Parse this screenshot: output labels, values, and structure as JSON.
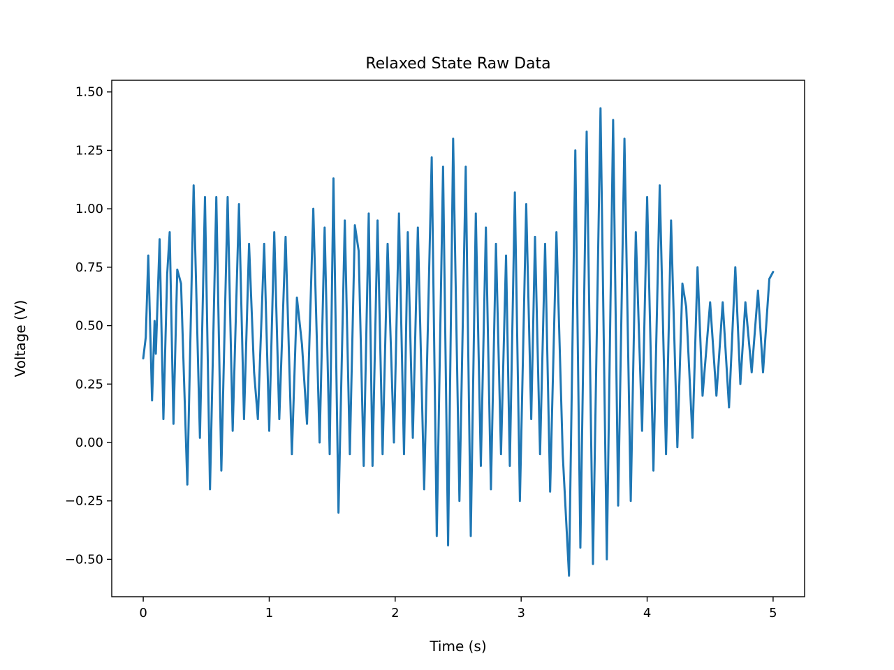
{
  "chart_data": {
    "type": "line",
    "title": "Relaxed State Raw Data",
    "xlabel": "Time (s)",
    "ylabel": "Voltage (V)",
    "xlim": [
      -0.25,
      5.25
    ],
    "ylim": [
      -0.66,
      1.55
    ],
    "x_ticks": [
      0,
      1,
      2,
      3,
      4,
      5
    ],
    "x_tick_labels": [
      "0",
      "1",
      "2",
      "3",
      "4",
      "5"
    ],
    "y_ticks": [
      -0.5,
      -0.25,
      0.0,
      0.25,
      0.5,
      0.75,
      1.0,
      1.25,
      1.5
    ],
    "y_tick_labels": [
      "−0.50",
      "−0.25",
      "0.00",
      "0.25",
      "0.50",
      "0.75",
      "1.00",
      "1.25",
      "1.50"
    ],
    "grid": false,
    "legend": "none",
    "series": [
      {
        "color": "#1f77b4",
        "points": [
          [
            0.0,
            0.36
          ],
          [
            0.02,
            0.45
          ],
          [
            0.04,
            0.8
          ],
          [
            0.07,
            0.18
          ],
          [
            0.09,
            0.52
          ],
          [
            0.1,
            0.38
          ],
          [
            0.13,
            0.87
          ],
          [
            0.16,
            0.1
          ],
          [
            0.19,
            0.72
          ],
          [
            0.21,
            0.9
          ],
          [
            0.24,
            0.08
          ],
          [
            0.27,
            0.74
          ],
          [
            0.3,
            0.68
          ],
          [
            0.35,
            -0.18
          ],
          [
            0.4,
            1.1
          ],
          [
            0.45,
            0.02
          ],
          [
            0.49,
            1.05
          ],
          [
            0.53,
            -0.2
          ],
          [
            0.58,
            1.05
          ],
          [
            0.62,
            -0.12
          ],
          [
            0.67,
            1.05
          ],
          [
            0.71,
            0.05
          ],
          [
            0.76,
            1.02
          ],
          [
            0.8,
            0.1
          ],
          [
            0.84,
            0.85
          ],
          [
            0.88,
            0.3
          ],
          [
            0.91,
            0.1
          ],
          [
            0.96,
            0.85
          ],
          [
            1.0,
            0.05
          ],
          [
            1.04,
            0.9
          ],
          [
            1.08,
            0.1
          ],
          [
            1.13,
            0.88
          ],
          [
            1.18,
            -0.05
          ],
          [
            1.22,
            0.62
          ],
          [
            1.26,
            0.42
          ],
          [
            1.3,
            0.08
          ],
          [
            1.35,
            1.0
          ],
          [
            1.4,
            0.0
          ],
          [
            1.44,
            0.92
          ],
          [
            1.48,
            -0.05
          ],
          [
            1.51,
            1.13
          ],
          [
            1.55,
            -0.3
          ],
          [
            1.6,
            0.95
          ],
          [
            1.64,
            -0.05
          ],
          [
            1.68,
            0.93
          ],
          [
            1.71,
            0.82
          ],
          [
            1.75,
            -0.1
          ],
          [
            1.79,
            0.98
          ],
          [
            1.82,
            -0.1
          ],
          [
            1.86,
            0.95
          ],
          [
            1.9,
            -0.05
          ],
          [
            1.94,
            0.85
          ],
          [
            1.99,
            0.0
          ],
          [
            2.03,
            0.98
          ],
          [
            2.07,
            -0.05
          ],
          [
            2.1,
            0.9
          ],
          [
            2.14,
            0.02
          ],
          [
            2.18,
            0.92
          ],
          [
            2.23,
            -0.2
          ],
          [
            2.29,
            1.22
          ],
          [
            2.33,
            -0.4
          ],
          [
            2.38,
            1.18
          ],
          [
            2.42,
            -0.44
          ],
          [
            2.46,
            1.3
          ],
          [
            2.51,
            -0.25
          ],
          [
            2.56,
            1.18
          ],
          [
            2.6,
            -0.4
          ],
          [
            2.64,
            0.98
          ],
          [
            2.68,
            -0.1
          ],
          [
            2.72,
            0.92
          ],
          [
            2.76,
            -0.2
          ],
          [
            2.8,
            0.85
          ],
          [
            2.84,
            -0.05
          ],
          [
            2.88,
            0.8
          ],
          [
            2.91,
            -0.1
          ],
          [
            2.95,
            1.07
          ],
          [
            2.99,
            -0.25
          ],
          [
            3.04,
            1.02
          ],
          [
            3.08,
            0.1
          ],
          [
            3.11,
            0.88
          ],
          [
            3.15,
            -0.05
          ],
          [
            3.19,
            0.85
          ],
          [
            3.23,
            -0.21
          ],
          [
            3.28,
            0.9
          ],
          [
            3.33,
            -0.05
          ],
          [
            3.38,
            -0.57
          ],
          [
            3.43,
            1.25
          ],
          [
            3.47,
            -0.45
          ],
          [
            3.52,
            1.33
          ],
          [
            3.57,
            -0.52
          ],
          [
            3.63,
            1.43
          ],
          [
            3.68,
            -0.5
          ],
          [
            3.73,
            1.38
          ],
          [
            3.77,
            -0.27
          ],
          [
            3.82,
            1.3
          ],
          [
            3.87,
            -0.25
          ],
          [
            3.91,
            0.9
          ],
          [
            3.96,
            0.05
          ],
          [
            4.0,
            1.05
          ],
          [
            4.05,
            -0.12
          ],
          [
            4.1,
            1.1
          ],
          [
            4.15,
            -0.05
          ],
          [
            4.19,
            0.95
          ],
          [
            4.24,
            -0.02
          ],
          [
            4.28,
            0.68
          ],
          [
            4.31,
            0.58
          ],
          [
            4.36,
            0.02
          ],
          [
            4.4,
            0.75
          ],
          [
            4.44,
            0.2
          ],
          [
            4.5,
            0.6
          ],
          [
            4.55,
            0.2
          ],
          [
            4.6,
            0.6
          ],
          [
            4.65,
            0.15
          ],
          [
            4.7,
            0.75
          ],
          [
            4.74,
            0.25
          ],
          [
            4.78,
            0.6
          ],
          [
            4.83,
            0.3
          ],
          [
            4.88,
            0.65
          ],
          [
            4.92,
            0.3
          ],
          [
            4.97,
            0.7
          ],
          [
            5.0,
            0.73
          ]
        ]
      }
    ]
  }
}
